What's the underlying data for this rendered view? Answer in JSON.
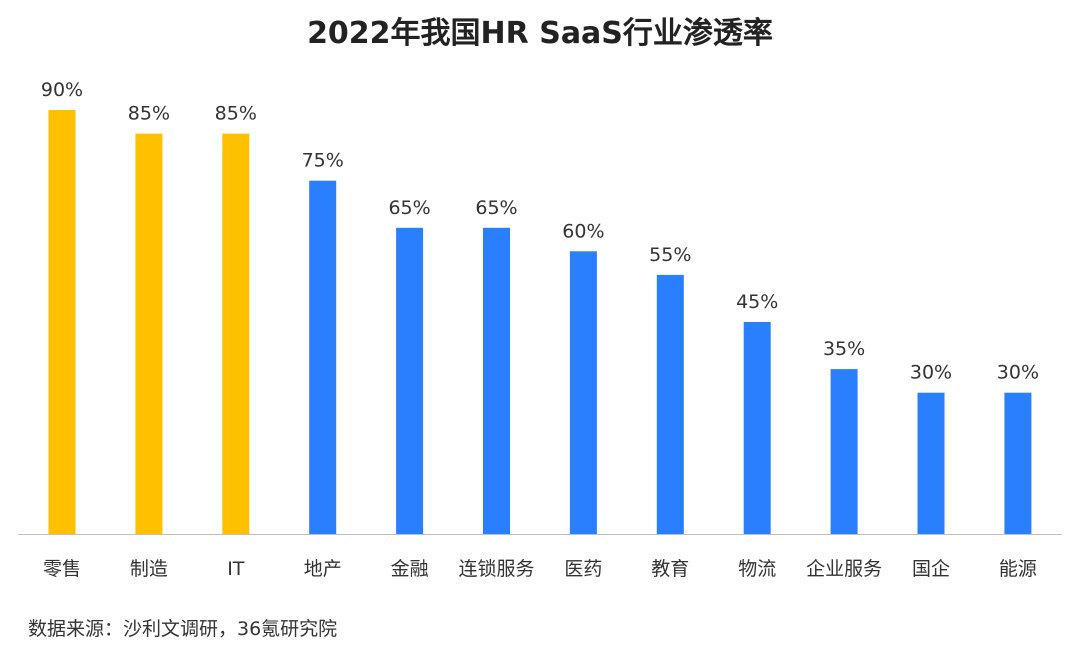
{
  "chart_data": {
    "type": "bar",
    "title": "2022年我国HR SaaS行业渗透率",
    "categories": [
      "零售",
      "制造",
      "IT",
      "地产",
      "金融",
      "连锁服务",
      "医药",
      "教育",
      "物流",
      "企业服务",
      "国企",
      "能源"
    ],
    "values": [
      90,
      85,
      85,
      75,
      65,
      65,
      60,
      55,
      45,
      35,
      30,
      30
    ],
    "value_labels": [
      "90%",
      "85%",
      "85%",
      "75%",
      "65%",
      "65%",
      "60%",
      "55%",
      "45%",
      "35%",
      "30%",
      "30%"
    ],
    "highlight_count": 3,
    "colors": {
      "highlight": "#FFC000",
      "default": "#2A7FFF",
      "axis": "#BFBFBF",
      "label": "#333333"
    },
    "ylim": [
      0,
      90
    ],
    "grid": false,
    "legend": "none"
  },
  "source": "数据来源：沙利文调研，36氪研究院"
}
